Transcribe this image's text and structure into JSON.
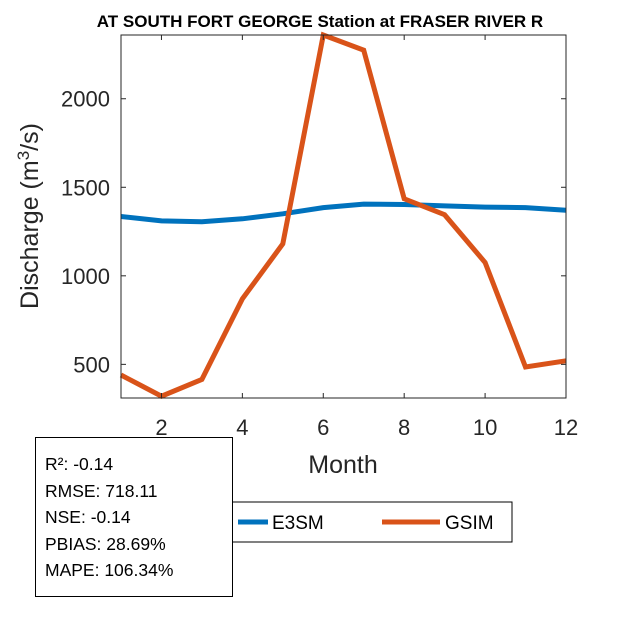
{
  "chart_data": {
    "type": "line",
    "title": "AT SOUTH FORT GEORGE  Station at  FRASER RIVER  R",
    "xlabel": "Month",
    "ylabel_main": "Discharge (m",
    "ylabel_sup": "3",
    "ylabel_end": "/s)",
    "xlim": [
      1,
      12
    ],
    "ylim": [
      310,
      2360
    ],
    "x": [
      1,
      2,
      3,
      4,
      5,
      6,
      7,
      8,
      9,
      10,
      11,
      12
    ],
    "xticks": [
      2,
      4,
      6,
      8,
      10,
      12
    ],
    "xtick_labels": [
      "2",
      "4",
      "6",
      "8",
      "10",
      "12"
    ],
    "yticks": [
      500,
      1000,
      1500,
      2000
    ],
    "ytick_labels": [
      "500",
      "1000",
      "1500",
      "2000"
    ],
    "grid": false,
    "legend_position": "below-center",
    "series": [
      {
        "name": "E3SM",
        "color": "#0072BD",
        "values": [
          1335,
          1310,
          1305,
          1322,
          1350,
          1385,
          1405,
          1403,
          1395,
          1388,
          1385,
          1370
        ]
      },
      {
        "name": "GSIM",
        "color": "#D95319",
        "values": [
          440,
          320,
          415,
          870,
          1180,
          2360,
          2275,
          1435,
          1345,
          1075,
          485,
          520
        ]
      }
    ]
  },
  "stats": {
    "lines": [
      "R²: -0.14",
      "RMSE: 718.11",
      "NSE: -0.14",
      "PBIAS: 28.69%",
      "MAPE: 106.34%"
    ]
  }
}
